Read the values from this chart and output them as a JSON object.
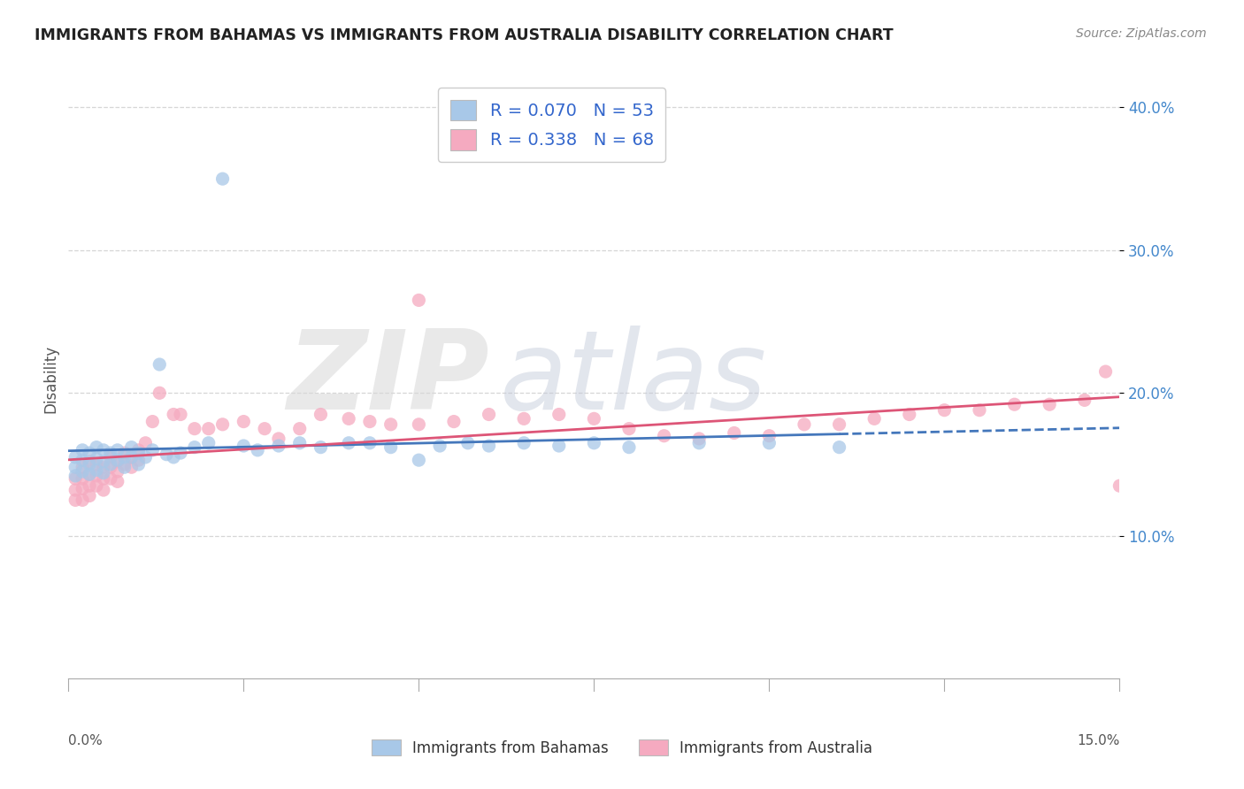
{
  "title": "IMMIGRANTS FROM BAHAMAS VS IMMIGRANTS FROM AUSTRALIA DISABILITY CORRELATION CHART",
  "source": "Source: ZipAtlas.com",
  "ylabel": "Disability",
  "xlim_min": 0.0,
  "xlim_max": 0.15,
  "ylim_min": 0.0,
  "ylim_max": 0.42,
  "yticks": [
    0.1,
    0.2,
    0.3,
    0.4
  ],
  "ytick_labels": [
    "10.0%",
    "20.0%",
    "30.0%",
    "40.0%"
  ],
  "bahamas_color": "#a8c8e8",
  "australia_color": "#f5aac0",
  "bahamas_line_color": "#4477bb",
  "australia_line_color": "#dd5577",
  "bahamas_R": 0.07,
  "bahamas_N": 53,
  "australia_R": 0.338,
  "australia_N": 68,
  "legend_text_color": "#3366cc",
  "background_color": "#ffffff",
  "grid_color": "#cccccc",
  "title_color": "#222222",
  "source_color": "#888888",
  "ylabel_color": "#555555",
  "tick_color": "#555555",
  "ytick_color": "#4488cc",
  "bahamas_x": [
    0.001,
    0.001,
    0.001,
    0.002,
    0.002,
    0.002,
    0.003,
    0.003,
    0.003,
    0.004,
    0.004,
    0.004,
    0.005,
    0.005,
    0.005,
    0.006,
    0.006,
    0.007,
    0.007,
    0.008,
    0.008,
    0.009,
    0.009,
    0.01,
    0.01,
    0.011,
    0.012,
    0.013,
    0.014,
    0.015,
    0.016,
    0.018,
    0.02,
    0.022,
    0.025,
    0.027,
    0.03,
    0.033,
    0.036,
    0.04,
    0.043,
    0.046,
    0.05,
    0.053,
    0.057,
    0.06,
    0.065,
    0.07,
    0.075,
    0.08,
    0.09,
    0.1,
    0.11
  ],
  "bahamas_y": [
    0.155,
    0.148,
    0.142,
    0.16,
    0.153,
    0.145,
    0.158,
    0.15,
    0.143,
    0.162,
    0.154,
    0.146,
    0.16,
    0.152,
    0.144,
    0.158,
    0.15,
    0.16,
    0.153,
    0.155,
    0.148,
    0.162,
    0.155,
    0.158,
    0.15,
    0.155,
    0.16,
    0.22,
    0.157,
    0.155,
    0.158,
    0.162,
    0.165,
    0.35,
    0.163,
    0.16,
    0.163,
    0.165,
    0.162,
    0.165,
    0.165,
    0.162,
    0.153,
    0.163,
    0.165,
    0.163,
    0.165,
    0.163,
    0.165,
    0.162,
    0.165,
    0.165,
    0.162
  ],
  "australia_x": [
    0.001,
    0.001,
    0.001,
    0.002,
    0.002,
    0.002,
    0.002,
    0.003,
    0.003,
    0.003,
    0.003,
    0.004,
    0.004,
    0.004,
    0.005,
    0.005,
    0.005,
    0.006,
    0.006,
    0.006,
    0.007,
    0.007,
    0.007,
    0.008,
    0.008,
    0.009,
    0.009,
    0.01,
    0.01,
    0.011,
    0.012,
    0.013,
    0.015,
    0.016,
    0.018,
    0.02,
    0.022,
    0.025,
    0.028,
    0.03,
    0.033,
    0.036,
    0.04,
    0.043,
    0.046,
    0.05,
    0.055,
    0.06,
    0.065,
    0.07,
    0.075,
    0.08,
    0.085,
    0.09,
    0.095,
    0.1,
    0.105,
    0.11,
    0.115,
    0.12,
    0.125,
    0.13,
    0.135,
    0.14,
    0.145,
    0.148,
    0.15,
    0.05
  ],
  "australia_y": [
    0.14,
    0.132,
    0.125,
    0.148,
    0.14,
    0.133,
    0.125,
    0.152,
    0.143,
    0.135,
    0.128,
    0.15,
    0.142,
    0.135,
    0.148,
    0.14,
    0.132,
    0.155,
    0.148,
    0.14,
    0.152,
    0.145,
    0.138,
    0.158,
    0.15,
    0.155,
    0.148,
    0.16,
    0.153,
    0.165,
    0.18,
    0.2,
    0.185,
    0.185,
    0.175,
    0.175,
    0.178,
    0.18,
    0.175,
    0.168,
    0.175,
    0.185,
    0.182,
    0.18,
    0.178,
    0.178,
    0.18,
    0.185,
    0.182,
    0.185,
    0.182,
    0.175,
    0.17,
    0.168,
    0.172,
    0.17,
    0.178,
    0.178,
    0.182,
    0.185,
    0.188,
    0.188,
    0.192,
    0.192,
    0.195,
    0.215,
    0.135,
    0.265
  ]
}
